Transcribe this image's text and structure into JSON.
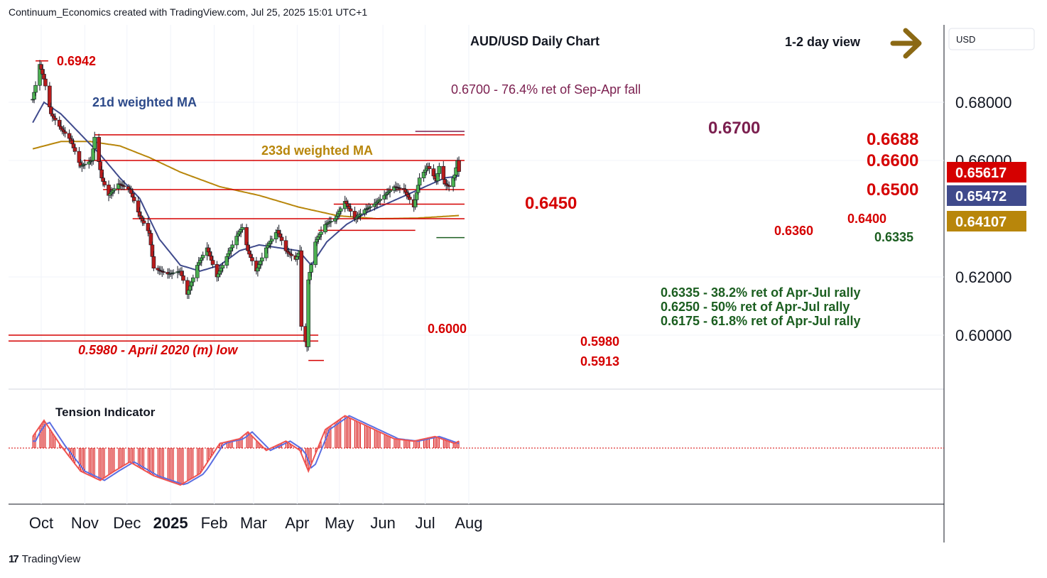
{
  "header": {
    "credit": "Continuum_Economics created with TradingView.com, Jul 25, 2025 15:01 UTC+1"
  },
  "footer": {
    "brand": "TradingView"
  },
  "chart_data": {
    "type": "candlestick",
    "title": "AUD/USD Daily Chart",
    "view_label": "1-2 day view",
    "currency": "USD",
    "y_axis": {
      "ticks": [
        "0.68000",
        "0.66000",
        "0.62000",
        "0.60000"
      ],
      "tick_values": [
        0.68,
        0.66,
        0.62,
        0.6
      ],
      "ylim": [
        0.586,
        0.697
      ]
    },
    "x_axis": {
      "labels": [
        "Oct",
        "Nov",
        "Dec",
        "2025",
        "Feb",
        "Mar",
        "Apr",
        "May",
        "Jun",
        "Jul",
        "Aug"
      ],
      "dates": [
        "2024-10-01",
        "2024-11-01",
        "2024-12-01",
        "2025-01-01",
        "2025-02-01",
        "2025-03-01",
        "2025-04-01",
        "2025-05-01",
        "2025-06-01",
        "2025-07-01",
        "2025-08-01"
      ]
    },
    "price_badges": [
      {
        "value": "0.65617",
        "color": "#d50000"
      },
      {
        "value": "0.65472",
        "color": "#3f4a8c"
      },
      {
        "value": "0.64107",
        "color": "#b8860b"
      }
    ],
    "levels": [
      {
        "price": 0.67,
        "label": "0.6700"
      },
      {
        "price": 0.6688,
        "label": "0.6688"
      },
      {
        "price": 0.66,
        "label": "0.6600"
      },
      {
        "price": 0.65,
        "label": "0.6500"
      },
      {
        "price": 0.645,
        "label": "0.6450"
      },
      {
        "price": 0.64,
        "label": "0.6400"
      },
      {
        "price": 0.636,
        "label": "0.6360"
      },
      {
        "price": 0.6335,
        "label": "0.6335"
      },
      {
        "price": 0.6,
        "label": "0.6000"
      },
      {
        "price": 0.598,
        "label": "0.5980"
      },
      {
        "price": 0.5913,
        "label": "0.5913"
      },
      {
        "price": 0.6942,
        "label": "0.6942"
      }
    ],
    "annotations": {
      "retrace_top": "0.6700 - 76.4% ret of Sep-Apr fall",
      "ma21": "21d weighted MA",
      "ma233": "233d weighted MA",
      "april_low": "0.5980 - April 2020 (m) low",
      "fib1": "0.6335 - 38.2% ret of Apr-Jul rally",
      "fib2": "0.6250 - 50% ret of Apr-Jul rally",
      "fib3": "0.6175 - 61.8% ret of Apr-Jul rally"
    },
    "anchors": [
      [
        "2024-09-25",
        0.681
      ],
      [
        "2024-09-30",
        0.693
      ],
      [
        "2024-10-03",
        0.688
      ],
      [
        "2024-10-08",
        0.676
      ],
      [
        "2024-10-15",
        0.671
      ],
      [
        "2024-10-22",
        0.667
      ],
      [
        "2024-10-29",
        0.658
      ],
      [
        "2024-11-06",
        0.66
      ],
      [
        "2024-11-08",
        0.668
      ],
      [
        "2024-11-13",
        0.654
      ],
      [
        "2024-11-18",
        0.648
      ],
      [
        "2024-11-25",
        0.652
      ],
      [
        "2024-12-03",
        0.65
      ],
      [
        "2024-12-10",
        0.641
      ],
      [
        "2024-12-17",
        0.635
      ],
      [
        "2024-12-20",
        0.623
      ],
      [
        "2024-12-30",
        0.621
      ],
      [
        "2025-01-08",
        0.622
      ],
      [
        "2025-01-13",
        0.614
      ],
      [
        "2025-01-20",
        0.624
      ],
      [
        "2025-01-27",
        0.63
      ],
      [
        "2025-02-03",
        0.62
      ],
      [
        "2025-02-10",
        0.627
      ],
      [
        "2025-02-17",
        0.634
      ],
      [
        "2025-02-21",
        0.637
      ],
      [
        "2025-02-25",
        0.629
      ],
      [
        "2025-03-03",
        0.622
      ],
      [
        "2025-03-10",
        0.63
      ],
      [
        "2025-03-18",
        0.636
      ],
      [
        "2025-03-24",
        0.629
      ],
      [
        "2025-03-31",
        0.626
      ],
      [
        "2025-04-03",
        0.629
      ],
      [
        "2025-04-04",
        0.603
      ],
      [
        "2025-04-08",
        0.596
      ],
      [
        "2025-04-09",
        0.619
      ],
      [
        "2025-04-14",
        0.632
      ],
      [
        "2025-04-21",
        0.638
      ],
      [
        "2025-04-28",
        0.64
      ],
      [
        "2025-05-05",
        0.646
      ],
      [
        "2025-05-12",
        0.64
      ],
      [
        "2025-05-19",
        0.643
      ],
      [
        "2025-05-26",
        0.645
      ],
      [
        "2025-06-02",
        0.648
      ],
      [
        "2025-06-09",
        0.651
      ],
      [
        "2025-06-16",
        0.65
      ],
      [
        "2025-06-23",
        0.644
      ],
      [
        "2025-06-27",
        0.654
      ],
      [
        "2025-07-03",
        0.658
      ],
      [
        "2025-07-09",
        0.653
      ],
      [
        "2025-07-11",
        0.658
      ],
      [
        "2025-07-15",
        0.652
      ],
      [
        "2025-07-18",
        0.651
      ],
      [
        "2025-07-22",
        0.655
      ],
      [
        "2025-07-24",
        0.66
      ],
      [
        "2025-07-25",
        0.6562
      ]
    ],
    "ma21_path": [
      [
        "2024-09-25",
        0.673
      ],
      [
        "2024-10-03",
        0.68
      ],
      [
        "2024-10-15",
        0.676
      ],
      [
        "2024-10-29",
        0.669
      ],
      [
        "2024-11-12",
        0.662
      ],
      [
        "2024-11-26",
        0.654
      ],
      [
        "2024-12-10",
        0.647
      ],
      [
        "2024-12-24",
        0.633
      ],
      [
        "2025-01-08",
        0.624
      ],
      [
        "2025-01-22",
        0.622
      ],
      [
        "2025-02-05",
        0.624
      ],
      [
        "2025-02-19",
        0.629
      ],
      [
        "2025-03-05",
        0.631
      ],
      [
        "2025-03-19",
        0.63
      ],
      [
        "2025-04-02",
        0.629
      ],
      [
        "2025-04-11",
        0.624
      ],
      [
        "2025-04-22",
        0.632
      ],
      [
        "2025-05-06",
        0.638
      ],
      [
        "2025-05-20",
        0.642
      ],
      [
        "2025-06-03",
        0.645
      ],
      [
        "2025-06-17",
        0.648
      ],
      [
        "2025-07-01",
        0.651
      ],
      [
        "2025-07-15",
        0.654
      ],
      [
        "2025-07-25",
        0.6547
      ]
    ],
    "ma233_path": [
      [
        "2024-09-25",
        0.664
      ],
      [
        "2024-10-15",
        0.6665
      ],
      [
        "2024-11-05",
        0.6665
      ],
      [
        "2024-11-26",
        0.665
      ],
      [
        "2024-12-17",
        0.661
      ],
      [
        "2025-01-08",
        0.656
      ],
      [
        "2025-02-05",
        0.651
      ],
      [
        "2025-03-05",
        0.648
      ],
      [
        "2025-04-02",
        0.644
      ],
      [
        "2025-04-30",
        0.641
      ],
      [
        "2025-05-28",
        0.64
      ],
      [
        "2025-06-25",
        0.6402
      ],
      [
        "2025-07-25",
        0.6411
      ]
    ],
    "tension_indicator": {
      "label": "Tension Indicator",
      "anchors": [
        [
          "2024-09-25",
          0.25
        ],
        [
          "2024-10-03",
          0.6
        ],
        [
          "2024-10-15",
          0.05
        ],
        [
          "2024-10-29",
          -0.5
        ],
        [
          "2024-11-12",
          -0.7
        ],
        [
          "2024-11-22",
          -0.5
        ],
        [
          "2024-12-03",
          -0.3
        ],
        [
          "2024-12-20",
          -0.6
        ],
        [
          "2025-01-08",
          -0.8
        ],
        [
          "2025-01-22",
          -0.55
        ],
        [
          "2025-02-05",
          0.1
        ],
        [
          "2025-02-19",
          0.2
        ],
        [
          "2025-02-25",
          0.35
        ],
        [
          "2025-03-10",
          -0.05
        ],
        [
          "2025-03-24",
          0.15
        ],
        [
          "2025-04-03",
          -0.05
        ],
        [
          "2025-04-09",
          -0.5
        ],
        [
          "2025-04-21",
          0.4
        ],
        [
          "2025-05-05",
          0.7
        ],
        [
          "2025-05-19",
          0.5
        ],
        [
          "2025-06-09",
          0.2
        ],
        [
          "2025-06-23",
          0.15
        ],
        [
          "2025-07-08",
          0.25
        ],
        [
          "2025-07-22",
          0.1
        ],
        [
          "2025-07-25",
          0.15
        ]
      ]
    }
  }
}
